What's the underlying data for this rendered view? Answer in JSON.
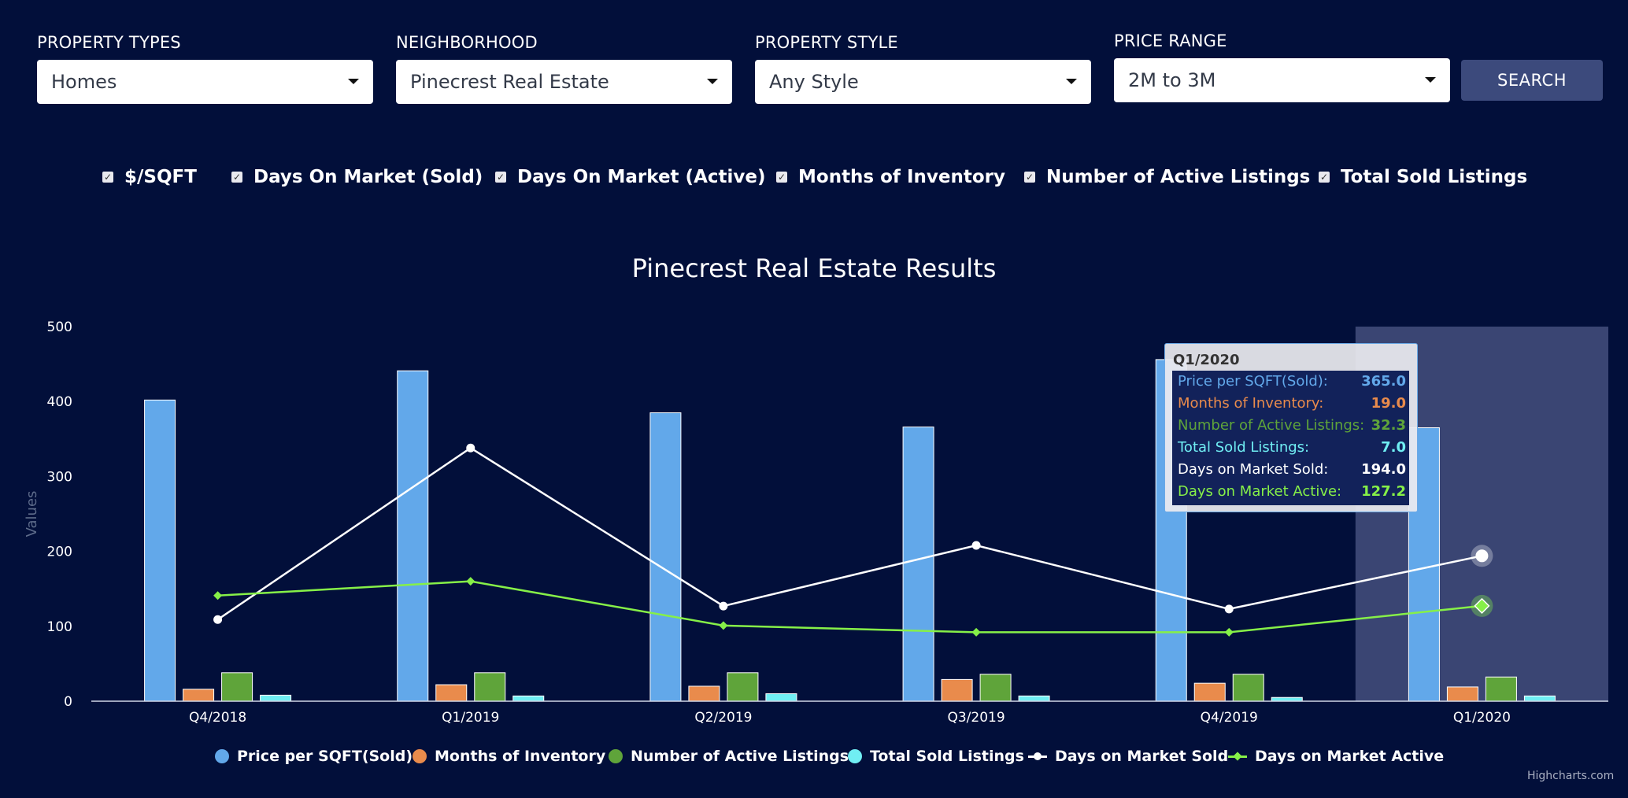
{
  "filters": [
    {
      "label": "PROPERTY TYPES",
      "value": "Homes"
    },
    {
      "label": "NEIGHBORHOOD",
      "value": "Pinecrest Real Estate"
    },
    {
      "label": "PROPERTY STYLE",
      "value": "Any Style"
    },
    {
      "label": "PRICE RANGE",
      "value": "2M to 3M"
    }
  ],
  "search_label": "SEARCH",
  "toggles": [
    {
      "label": "$/SQFT",
      "checked": true
    },
    {
      "label": "Days On Market (Sold)",
      "checked": true
    },
    {
      "label": "Days On Market (Active)",
      "checked": true
    },
    {
      "label": "Months of Inventory",
      "checked": true
    },
    {
      "label": "Number of Active Listings",
      "checked": true
    },
    {
      "label": "Total Sold Listings",
      "checked": true
    }
  ],
  "chart_data": {
    "type": "bar",
    "title": "Pinecrest Real Estate Results",
    "ylabel": "Values",
    "ylim": [
      0,
      500
    ],
    "yticks": [
      0,
      100,
      200,
      300,
      400,
      500
    ],
    "categories": [
      "Q4/2018",
      "Q1/2019",
      "Q2/2019",
      "Q3/2019",
      "Q4/2019",
      "Q1/2020"
    ],
    "highlighted_category": "Q1/2020",
    "series": [
      {
        "name": "Price per SQFT(Sold)",
        "kind": "bar",
        "color": "#62a8ea",
        "values": [
          402,
          441,
          385,
          366,
          456,
          365
        ]
      },
      {
        "name": "Months of Inventory",
        "kind": "bar",
        "color": "#e98b4c",
        "values": [
          16,
          22,
          20,
          29,
          24,
          19
        ]
      },
      {
        "name": "Number of Active Listings",
        "kind": "bar",
        "color": "#5fa43a",
        "values": [
          38,
          38,
          38,
          36,
          36,
          32.3
        ]
      },
      {
        "name": "Total Sold Listings",
        "kind": "bar",
        "color": "#70eef3",
        "values": [
          8,
          7,
          10,
          7,
          5,
          7
        ]
      },
      {
        "name": "Days on Market Sold",
        "kind": "line",
        "color": "#ffffff",
        "marker": "circle",
        "values": [
          109,
          338,
          127,
          208,
          123,
          194
        ]
      },
      {
        "name": "Days on Market Active",
        "kind": "line",
        "color": "#86f048",
        "marker": "diamond",
        "values": [
          141,
          160,
          101,
          92,
          92,
          127.2
        ]
      }
    ],
    "tooltip": {
      "header": "Q1/2020",
      "rows": [
        {
          "label": "Price per SQFT(Sold):",
          "value": "365.0",
          "color": "#62a8ea"
        },
        {
          "label": "Months of Inventory:",
          "value": "19.0",
          "color": "#e98b4c"
        },
        {
          "label": "Number of Active Listings:",
          "value": "32.3",
          "color": "#5fa43a"
        },
        {
          "label": "Total Sold Listings:",
          "value": "7.0",
          "color": "#70eef3"
        },
        {
          "label": "Days on Market Sold:",
          "value": "194.0",
          "color": "#ffffff"
        },
        {
          "label": "Days on Market Active:",
          "value": "127.2",
          "color": "#86f048"
        }
      ]
    },
    "legend_position": "bottom-center",
    "credits": "Highcharts.com"
  }
}
